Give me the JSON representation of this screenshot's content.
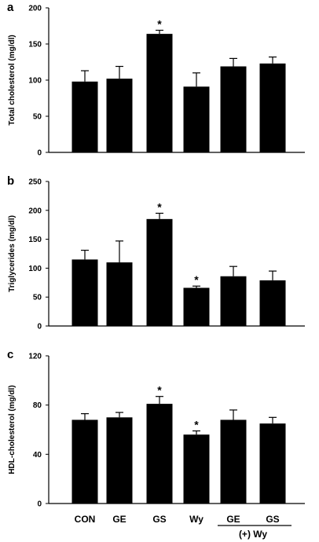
{
  "chart_data": [
    {
      "type": "bar",
      "panel": "a",
      "ylabel": "Total cholesterol (mg/dl)",
      "ylim": [
        0,
        200
      ],
      "yticks": [
        0,
        50,
        100,
        150,
        200
      ],
      "categories": [
        "CON",
        "GE",
        "GS",
        "Wy",
        "GE",
        "GS"
      ],
      "values": [
        98,
        102,
        164,
        91,
        119,
        123
      ],
      "errors": [
        15,
        17,
        5,
        19,
        11,
        9
      ],
      "significant": [
        false,
        false,
        true,
        false,
        false,
        false
      ],
      "annotation": "*",
      "grid": false,
      "legend": "none"
    },
    {
      "type": "bar",
      "panel": "b",
      "ylabel": "Triglycerides (mg/dl)",
      "ylim": [
        0,
        250
      ],
      "yticks": [
        0,
        50,
        100,
        150,
        200,
        250
      ],
      "categories": [
        "CON",
        "GE",
        "GS",
        "Wy",
        "GE",
        "GS"
      ],
      "values": [
        115,
        110,
        185,
        66,
        86,
        79
      ],
      "errors": [
        16,
        37,
        10,
        3,
        17,
        16
      ],
      "significant": [
        false,
        false,
        true,
        true,
        false,
        false
      ],
      "annotation": "*",
      "grid": false,
      "legend": "none"
    },
    {
      "type": "bar",
      "panel": "c",
      "ylabel": "HDL-cholesterol (mg/dl)",
      "ylim": [
        0,
        120
      ],
      "yticks": [
        0,
        40,
        80,
        120
      ],
      "categories": [
        "CON",
        "GE",
        "GS",
        "Wy",
        "GE",
        "GS"
      ],
      "values": [
        68,
        70,
        81,
        56,
        68,
        65
      ],
      "errors": [
        5,
        4,
        6,
        3,
        8,
        5
      ],
      "significant": [
        false,
        false,
        true,
        true,
        false,
        false
      ],
      "annotation": "*",
      "grid": false,
      "legend": "none"
    }
  ],
  "xaxis": {
    "categories": [
      "CON",
      "GE",
      "GS",
      "Wy",
      "GE",
      "GS"
    ],
    "group_label": "(+)  Wy",
    "group_members": [
      4,
      5
    ]
  },
  "colors": {
    "bar": "#000000",
    "axis": "#000000",
    "background": "#ffffff"
  }
}
